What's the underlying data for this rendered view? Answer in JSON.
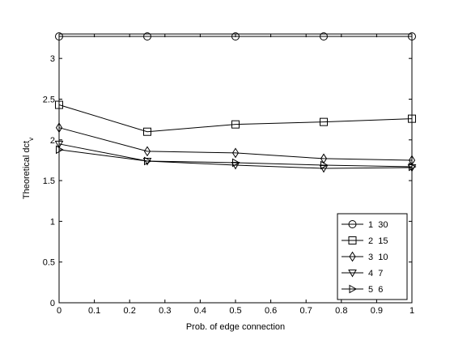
{
  "chart_data": {
    "type": "line",
    "title": "",
    "xlabel": "Prob. of edge connection",
    "ylabel": "Theoretical dct",
    "ylabel_subscript": "v",
    "xlim": [
      0,
      1
    ],
    "ylim": [
      0,
      3.3
    ],
    "xticks": [
      0,
      0.1,
      0.2,
      0.3,
      0.4,
      0.5,
      0.6,
      0.7,
      0.8,
      0.9,
      1
    ],
    "xtick_labels": [
      "0",
      "0.1",
      "0.2",
      "0.3",
      "0.4",
      "0.5",
      "0.6",
      "0.7",
      "0.8",
      "0.9",
      "1"
    ],
    "yticks": [
      0,
      0.5,
      1,
      1.5,
      2,
      2.5,
      3
    ],
    "ytick_labels": [
      "0",
      "0.5",
      "1",
      "1.5",
      "2",
      "2.5",
      "3"
    ],
    "grid": false,
    "legend_position": "bottom-right",
    "x": [
      0,
      0.25,
      0.5,
      0.75,
      1
    ],
    "series": [
      {
        "name": "1  30",
        "marker": "circle",
        "color": "#000000",
        "values": [
          3.27,
          3.27,
          3.27,
          3.27,
          3.27
        ],
        "marker_x": [
          0,
          0.25,
          0.5,
          0.75,
          1
        ]
      },
      {
        "name": "2  15",
        "marker": "square",
        "color": "#000000",
        "values": [
          2.43,
          2.1,
          2.19,
          2.22,
          2.26
        ],
        "marker_x": [
          0,
          0.25,
          0.5,
          0.75,
          1
        ]
      },
      {
        "name": "3  10",
        "marker": "diamond",
        "color": "#000000",
        "values": [
          2.15,
          1.86,
          1.84,
          1.77,
          1.75
        ],
        "marker_x": [
          0,
          0.25,
          0.5,
          0.75,
          1
        ]
      },
      {
        "name": "4  7",
        "marker": "triangle-down",
        "color": "#000000",
        "values": [
          1.95,
          1.74,
          1.69,
          1.65,
          1.66
        ],
        "marker_x": [
          0,
          0.25,
          0.5,
          0.75,
          1
        ]
      },
      {
        "name": "5  6",
        "marker": "triangle-right",
        "color": "#000000",
        "values": [
          1.88,
          1.74,
          1.72,
          1.69,
          1.67
        ],
        "marker_x": [
          0,
          0.25,
          0.5,
          0.75,
          1
        ]
      }
    ]
  }
}
